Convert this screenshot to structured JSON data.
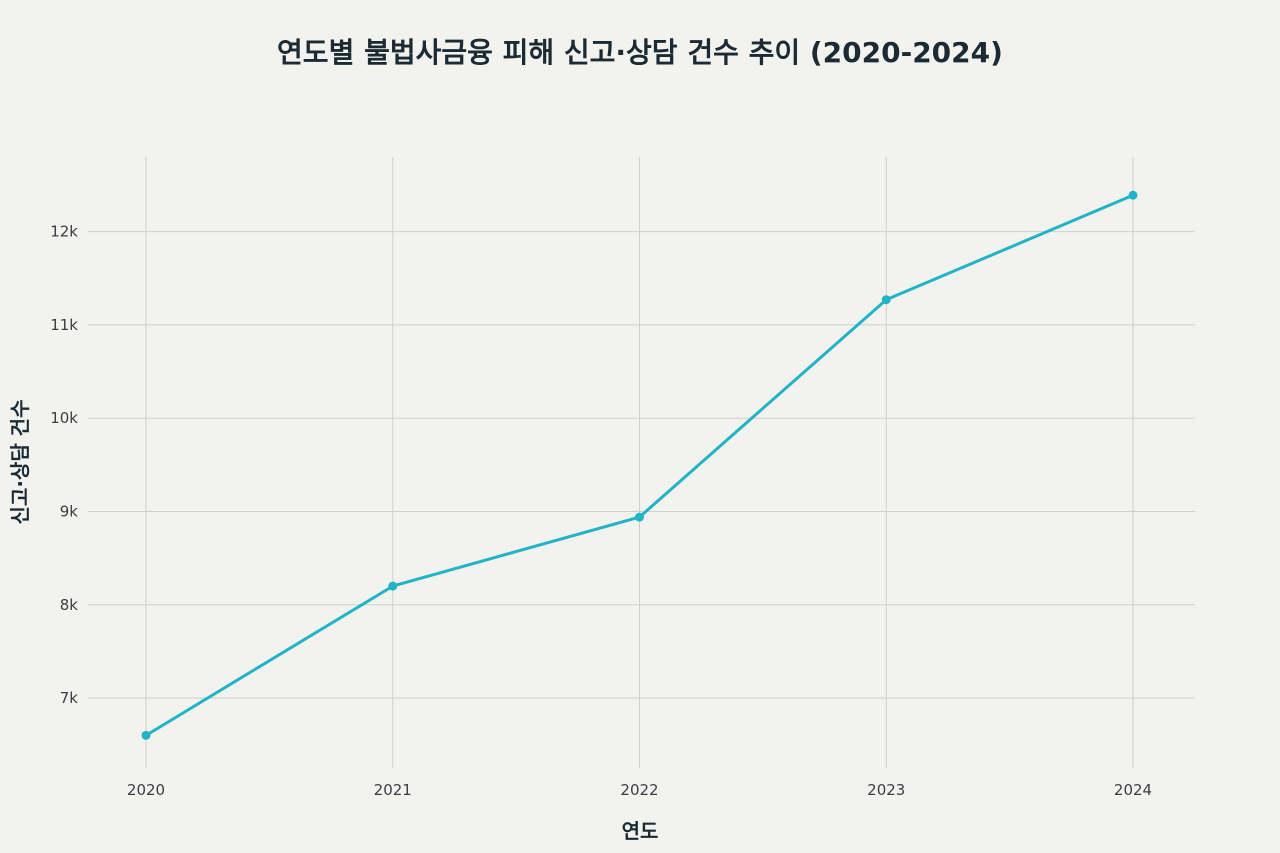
{
  "chart_data": {
    "type": "line",
    "title": "연도별 불법사금융 피해 신고·상담 건수 추이 (2020-2024)",
    "xlabel": "연도",
    "ylabel": "신고·상담 건수",
    "x": [
      "2020",
      "2021",
      "2022",
      "2023",
      "2024"
    ],
    "series": [
      {
        "values": [
          6600,
          8200,
          8940,
          11270,
          12390
        ]
      }
    ],
    "ylim": [
      6250,
      12800
    ],
    "y_ticks": [
      7000,
      8000,
      9000,
      10000,
      11000,
      12000
    ],
    "y_tick_labels": [
      "7k",
      "8k",
      "9k",
      "10k",
      "11k",
      "12k"
    ],
    "grid": true,
    "legend": "none",
    "colors": {
      "line": "#22b3c8",
      "marker": "#22b3c8"
    }
  }
}
